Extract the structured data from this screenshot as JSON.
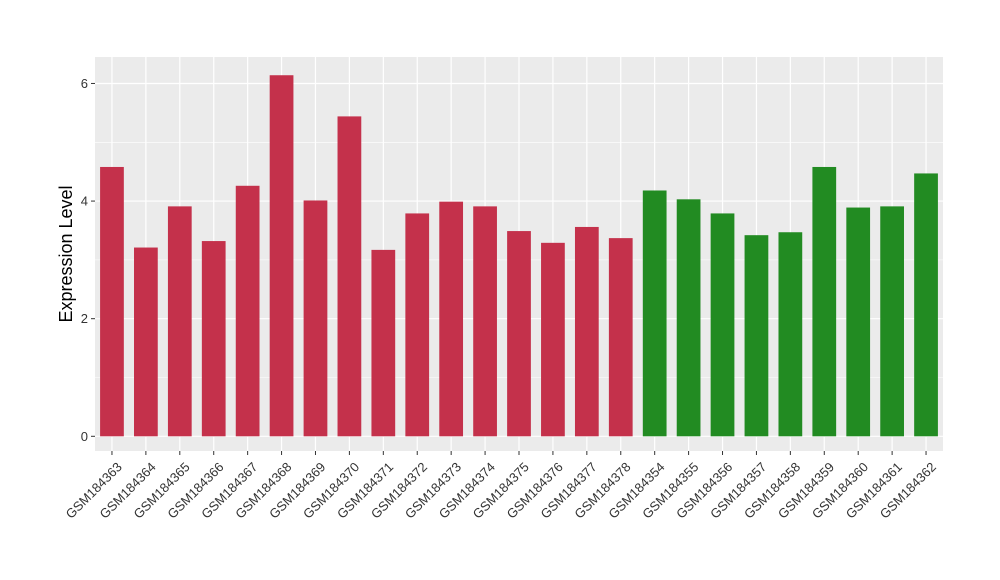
{
  "chart_data": {
    "type": "bar",
    "xlabel": "",
    "ylabel": "Expression Level",
    "ylim": [
      -0.25,
      6.45
    ],
    "yticks": [
      0,
      2,
      4,
      6
    ],
    "grid": true,
    "legend": "none",
    "colors": {
      "panel": "#ebebeb",
      "grid_major": "#ffffff",
      "group_1": "#c4314b",
      "group_2": "#228b22"
    },
    "categories": [
      "GSM184363",
      "GSM184364",
      "GSM184365",
      "GSM184366",
      "GSM184367",
      "GSM184368",
      "GSM184369",
      "GSM184370",
      "GSM184371",
      "GSM184372",
      "GSM184373",
      "GSM184374",
      "GSM184375",
      "GSM184376",
      "GSM184377",
      "GSM184378",
      "GSM184354",
      "GSM184355",
      "GSM184356",
      "GSM184357",
      "GSM184358",
      "GSM184359",
      "GSM184360",
      "GSM184361",
      "GSM184362"
    ],
    "values": [
      4.58,
      3.21,
      3.91,
      3.32,
      4.26,
      6.14,
      4.01,
      5.44,
      3.17,
      3.79,
      3.99,
      3.91,
      3.49,
      3.29,
      3.56,
      3.37,
      4.18,
      4.03,
      3.79,
      3.42,
      3.47,
      4.58,
      3.89,
      3.91,
      4.47
    ],
    "bar_groups": [
      "group_1",
      "group_1",
      "group_1",
      "group_1",
      "group_1",
      "group_1",
      "group_1",
      "group_1",
      "group_1",
      "group_1",
      "group_1",
      "group_1",
      "group_1",
      "group_1",
      "group_1",
      "group_1",
      "group_2",
      "group_2",
      "group_2",
      "group_2",
      "group_2",
      "group_2",
      "group_2",
      "group_2",
      "group_2"
    ]
  }
}
